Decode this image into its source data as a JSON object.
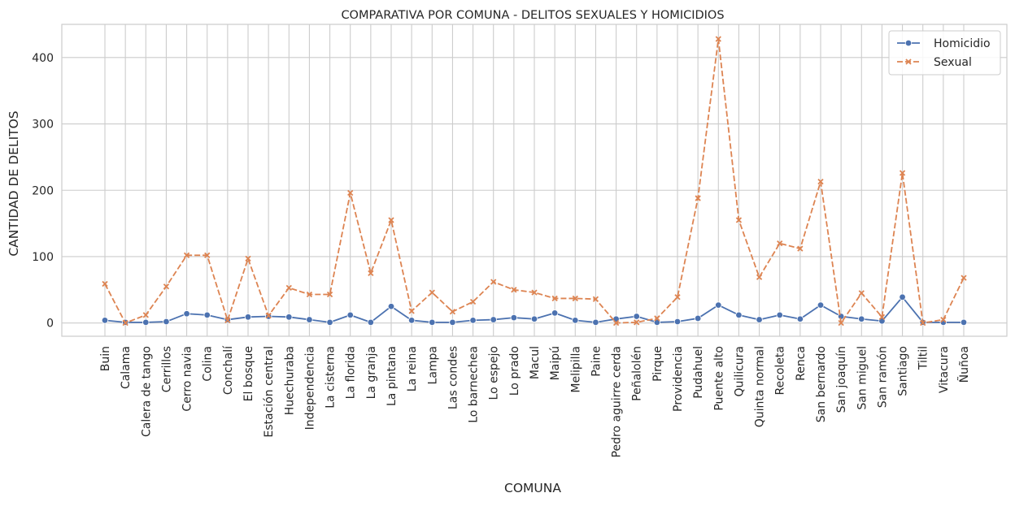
{
  "chart_data": {
    "type": "line",
    "title": "COMPARATIVA POR COMUNA - DELITOS SEXUALES Y HOMICIDIOS",
    "xlabel": "COMUNA",
    "ylabel": "CANTIDAD DE DELITOS",
    "ylim": [
      -20,
      450
    ],
    "yticks": [
      0,
      100,
      200,
      300,
      400
    ],
    "grid": true,
    "legend_position": "top-right",
    "categories": [
      "Buin",
      "Calama",
      "Calera de tango",
      "Cerrillos",
      "Cerro navia",
      "Colina",
      "Conchalí",
      "El bosque",
      "Estación central",
      "Huechuraba",
      "Independencia",
      "La cisterna",
      "La florida",
      "La granja",
      "La pintana",
      "La reina",
      "Lampa",
      "Las condes",
      "Lo barnechea",
      "Lo espejo",
      "Lo prado",
      "Macul",
      "Maipú",
      "Melipilla",
      "Paine",
      "Pedro  aguirre cerda",
      "Peñalolén",
      "Pirque",
      "Providencia",
      "Pudahuel",
      "Puente alto",
      "Quilicura",
      "Quinta normal",
      "Recoleta",
      "Renca",
      "San bernardo",
      "San joaquín",
      "San miguel",
      "San ramón",
      "Santiago",
      "Tiltil",
      "Vitacura",
      "Ñuñoa"
    ],
    "series": [
      {
        "name": "Homicidio",
        "color": "#4c72b0",
        "marker": "circle",
        "line_style": "solid",
        "values": [
          4,
          1,
          1,
          2,
          14,
          12,
          5,
          9,
          10,
          9,
          5,
          1,
          12,
          1,
          25,
          4,
          1,
          1,
          4,
          5,
          8,
          6,
          15,
          4,
          1,
          6,
          10,
          1,
          2,
          7,
          27,
          12,
          5,
          12,
          6,
          27,
          10,
          6,
          3,
          39,
          1,
          1,
          1
        ]
      },
      {
        "name": "Sexual",
        "color": "#dd8452",
        "marker": "x",
        "line_style": "dashed",
        "values": [
          59,
          0,
          12,
          55,
          102,
          102,
          4,
          97,
          11,
          53,
          43,
          43,
          196,
          75,
          155,
          18,
          46,
          17,
          32,
          62,
          50,
          46,
          37,
          37,
          36,
          0,
          1,
          7,
          39,
          188,
          428,
          155,
          69,
          120,
          112,
          213,
          0,
          45,
          9,
          226,
          0,
          5,
          68
        ]
      }
    ]
  }
}
